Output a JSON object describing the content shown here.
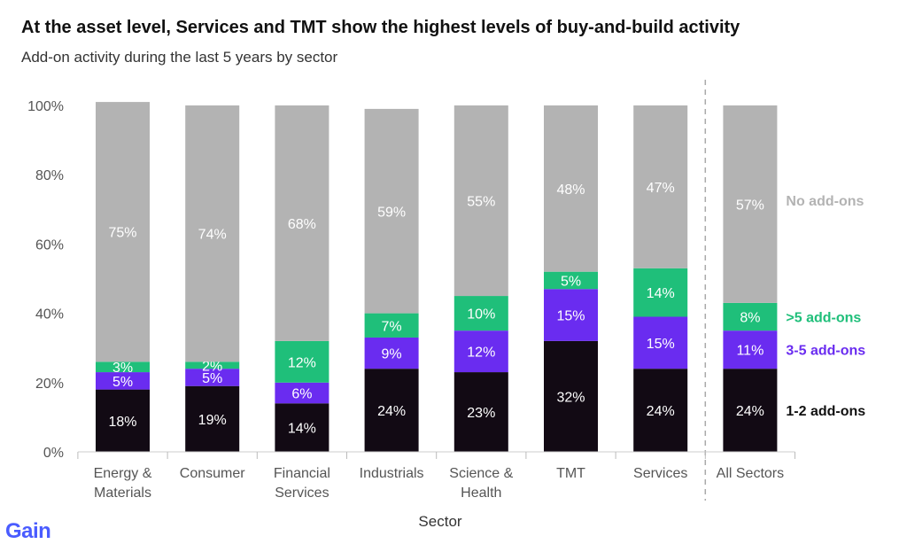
{
  "header": {
    "title": "At the asset level, Services and TMT show the highest levels of buy-and-build activity",
    "subtitle": "Add-on activity during the last 5 years by sector"
  },
  "brand": {
    "logo_text": "Gain"
  },
  "colors": {
    "no_addons": "#b3b3b3",
    "over5": "#1fbf7a",
    "three_five": "#6a2cf0",
    "one_two": "#120a14",
    "axis_text": "#555555",
    "divider": "#aaaaaa"
  },
  "chart_data": {
    "type": "bar",
    "stacked": true,
    "xlabel": "Sector",
    "ylabel": "",
    "ylim": [
      0,
      100
    ],
    "yticks": [
      "0%",
      "20%",
      "40%",
      "60%",
      "80%",
      "100%"
    ],
    "categories": [
      [
        "Energy &",
        "Materials"
      ],
      [
        "Consumer"
      ],
      [
        "Financial",
        "Services"
      ],
      [
        "Industrials"
      ],
      [
        "Science &",
        "Health"
      ],
      [
        "TMT"
      ],
      [
        "Services"
      ],
      [
        "All Sectors"
      ]
    ],
    "series": [
      {
        "name": "1-2 add-ons",
        "color": "#120a14",
        "label_color": "#111111",
        "values": [
          18,
          19,
          14,
          24,
          23,
          32,
          24,
          24
        ],
        "labels": [
          "18%",
          "19%",
          "14%",
          "24%",
          "23%",
          "32%",
          "24%",
          "24%"
        ]
      },
      {
        "name": "3-5 add-ons",
        "color": "#6a2cf0",
        "label_color": "#6a2cf0",
        "values": [
          5,
          5,
          6,
          9,
          12,
          15,
          15,
          11
        ],
        "labels": [
          "5%",
          "5%",
          "6%",
          "9%",
          "12%",
          "15%",
          "15%",
          "11%"
        ]
      },
      {
        "name": ">5 add-ons",
        "color": "#1fbf7a",
        "label_color": "#1fbf7a",
        "values": [
          3,
          2,
          12,
          7,
          10,
          5,
          14,
          8
        ],
        "labels": [
          "3%",
          "2%",
          "12%",
          "7%",
          "10%",
          "5%",
          "14%",
          "8%"
        ]
      },
      {
        "name": "No add-ons",
        "color": "#b3b3b3",
        "label_color": "#b3b3b3",
        "values": [
          75,
          74,
          68,
          59,
          55,
          48,
          47,
          57
        ],
        "labels": [
          "75%",
          "74%",
          "68%",
          "59%",
          "55%",
          "48%",
          "47%",
          "57%"
        ]
      }
    ],
    "divider_before_last": true,
    "legend_placement": "right of last bar"
  }
}
